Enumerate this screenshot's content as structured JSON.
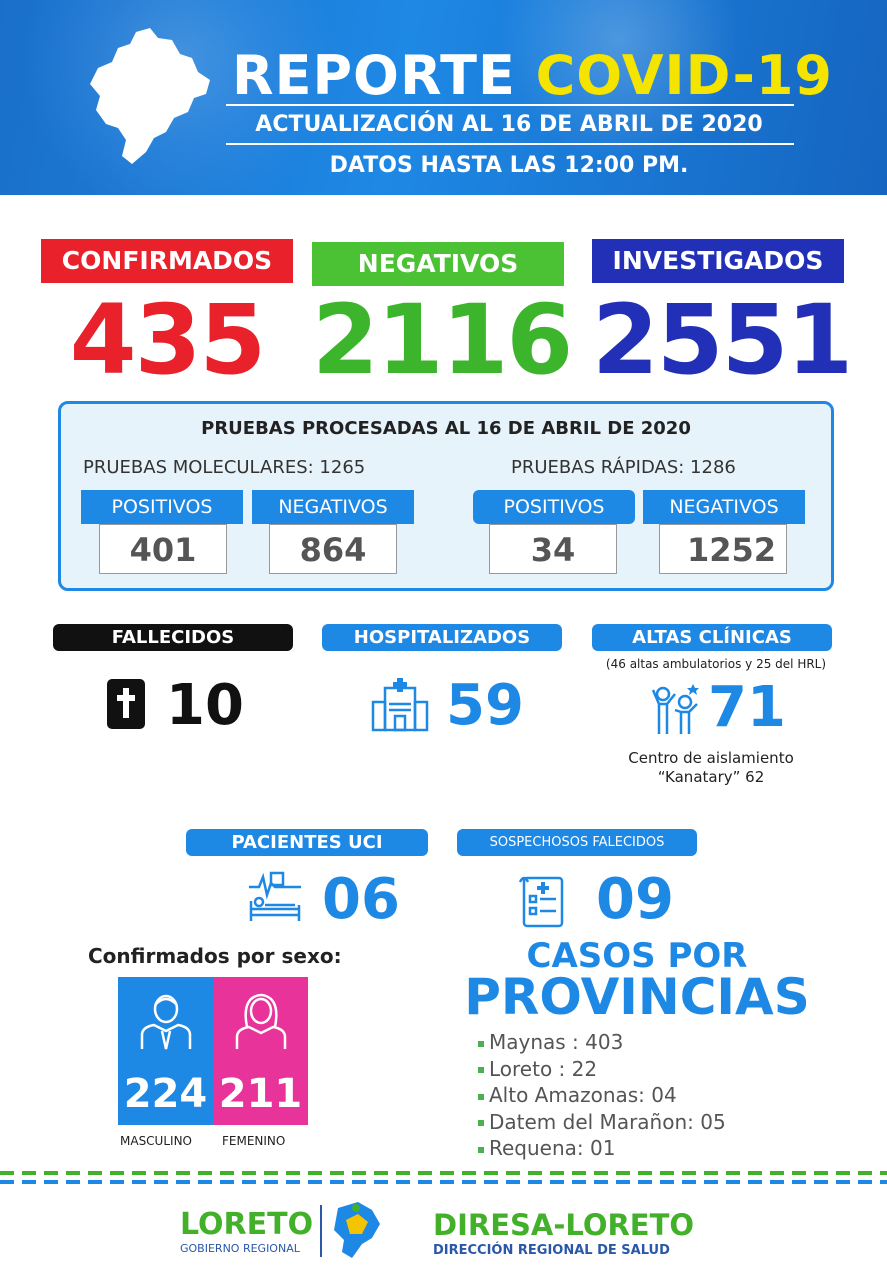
{
  "header": {
    "title_part1": "REPORTE",
    "title_part2": "COVID-19",
    "update_line": "ACTUALIZACIÓN AL 16 DE ABRIL DE 2020",
    "data_line": "DATOS HASTA LAS 12:00 PM."
  },
  "totals": {
    "confirmed_label": "CONFIRMADOS",
    "confirmed_value": "435",
    "negative_label": "NEGATIVOS",
    "negative_value": "2116",
    "investigated_label": "INVESTIGADOS",
    "investigated_value": "2551"
  },
  "tests": {
    "title": "PRUEBAS PROCESADAS AL 16 DE ABRIL  DE 2020",
    "molecular_label": "PRUEBAS MOLECULARES: 1265",
    "rapid_label": "PRUEBAS RÁPIDAS: 1286",
    "positive_label": "POSITIVOS",
    "negative_label": "NEGATIVOS",
    "molecular_positive": "401",
    "molecular_negative": "864",
    "rapid_positive": "34",
    "rapid_negative": "1252"
  },
  "status": {
    "deceased_label": "FALLECIDOS",
    "deceased_value": "10",
    "hospitalized_label": "HOSPITALIZADOS",
    "hospitalized_value": "59",
    "discharged_label": "ALTAS CLÍNICAS",
    "discharged_note": "(46 altas ambulatorios y 25 del HRL)",
    "discharged_value": "71",
    "isolation_line1": "Centro de aislamiento",
    "isolation_line2": "“Kanatary” 62",
    "icu_label": "PACIENTES UCI",
    "icu_value": "06",
    "suspect_label": "SOSPECHOSOS FALECIDOS",
    "suspect_value": "09"
  },
  "sex": {
    "title": "Confirmados por sexo:",
    "male_value": "224",
    "female_value": "211",
    "male_label": "MASCULINO",
    "female_label": "FEMENINO"
  },
  "provinces": {
    "heading1": "CASOS POR",
    "heading2": "PROVINCIAS",
    "items": [
      "Maynas : 403",
      "Loreto  :  22",
      "Alto Amazonas: 04",
      "Datem del Marañon: 05",
      "Requena: 01"
    ]
  },
  "footer": {
    "left_brand": "LORETO",
    "left_sub": "GOBIERNO REGIONAL",
    "right_brand": "DIRESA-LORETO",
    "right_sub": "DIRECCIÓN REGIONAL DE SALUD"
  },
  "colors": {
    "confirmed": "#e8212a",
    "negative": "#3cb52c",
    "investigated": "#2230b8",
    "accent_blue": "#1e88e5",
    "female_pink": "#e8339a"
  }
}
